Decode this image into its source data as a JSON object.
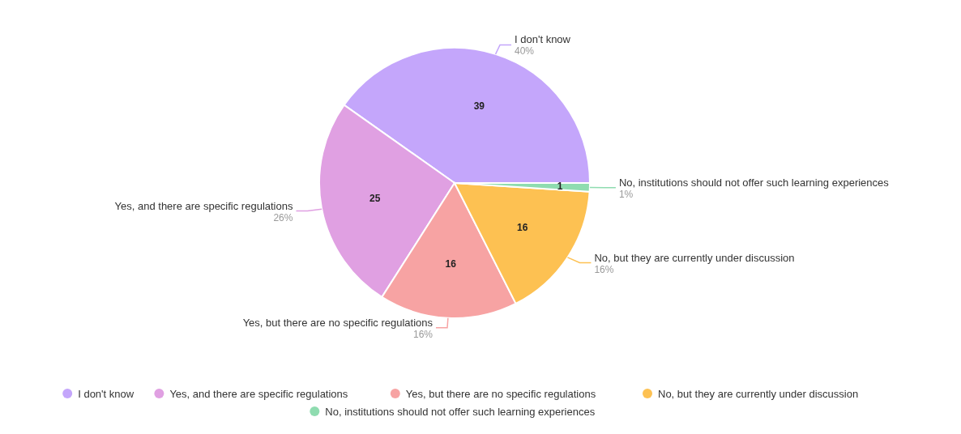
{
  "chart_data": {
    "type": "pie",
    "categories": [
      "I don't know",
      "Yes, and there are specific regulations",
      "Yes, but there are no specific regulations",
      "No, but they are currently under discussion",
      "No, institutions should not offer such learning experiences"
    ],
    "values": [
      39,
      25,
      16,
      16,
      1
    ],
    "colors": [
      "#c4a6fb",
      "#e0a0e2",
      "#f7a3a3",
      "#fdc152",
      "#8fdcb0"
    ],
    "data_labels": true,
    "annotations": [
      {
        "text": "40%",
        "x": "I don't know"
      },
      {
        "text": "26%",
        "x": "Yes, and there are specific regulations"
      },
      {
        "text": "16%",
        "x": "Yes, but there are no specific regulations"
      },
      {
        "text": "16%",
        "x": "No, but they are currently under discussion"
      },
      {
        "text": "1%",
        "x": "No, institutions should not offer such learning experiences"
      }
    ],
    "legend": "bottom"
  }
}
